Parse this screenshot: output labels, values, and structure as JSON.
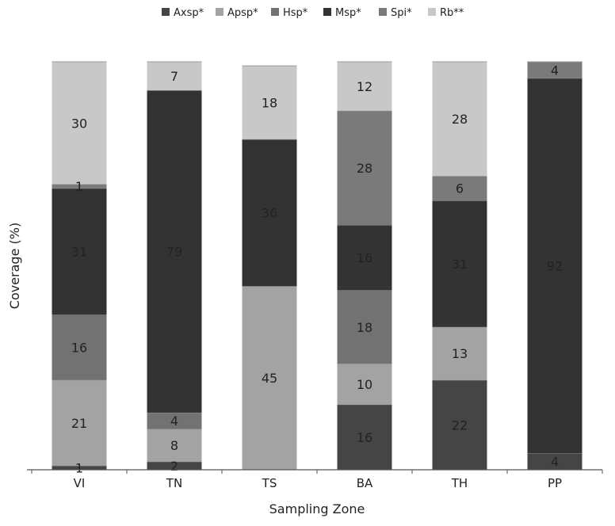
{
  "chart_data": {
    "type": "bar",
    "stacked": true,
    "title": "",
    "xlabel": "Sampling Zone",
    "ylabel": "Coverage (%)",
    "ylim": [
      0,
      100
    ],
    "categories": [
      "VI",
      "TN",
      "TS",
      "BA",
      "TH",
      "PP"
    ],
    "series": [
      {
        "name": "Axsp*",
        "color": "#454545",
        "values": [
          1,
          2,
          0,
          16,
          22,
          4
        ]
      },
      {
        "name": "Apsp*",
        "color": "#a3a3a3",
        "values": [
          21,
          8,
          45,
          10,
          13,
          0
        ]
      },
      {
        "name": "Hsp*",
        "color": "#727272",
        "values": [
          16,
          4,
          0,
          18,
          0,
          0
        ]
      },
      {
        "name": "Msp*",
        "color": "#333333",
        "values": [
          31,
          79,
          36,
          16,
          31,
          92
        ]
      },
      {
        "name": "Spi*",
        "color": "#7a7a7a",
        "values": [
          1,
          0,
          0,
          28,
          6,
          4
        ]
      },
      {
        "name": "Rb**",
        "color": "#c8c8c8",
        "values": [
          30,
          7,
          18,
          12,
          28,
          0
        ]
      }
    ],
    "axis_color": "#555555"
  }
}
